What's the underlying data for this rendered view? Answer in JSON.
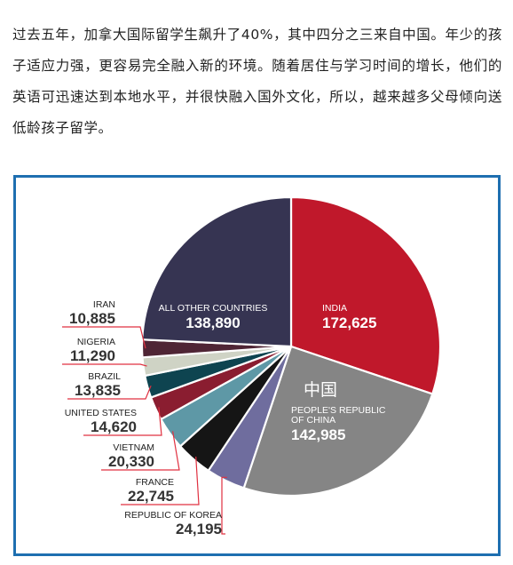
{
  "article": {
    "paragraph": "过去五年，加拿大国际留学生飙升了40%，其中四分之三来自中国。年少的孩子适应力强，更容易完全融入新的环境。随着居住与学习时间的增长，他们的英语可迅速达到本地水平，并很快融入国外文化，所以，越来越多父母倾向送低龄孩子留学。"
  },
  "chart_data": {
    "type": "pie",
    "title": "",
    "slices": [
      {
        "label": "INDIA",
        "value": 172625,
        "value_label": "172,625",
        "color": "#c0182b"
      },
      {
        "label": "PEOPLE'S REPUBLIC OF CHINA",
        "value": 142985,
        "value_label": "142,985",
        "note": "中国",
        "color": "#858585"
      },
      {
        "label": "REPUBLIC OF KOREA",
        "value": 24195,
        "value_label": "24,195",
        "color": "#6f6d9e"
      },
      {
        "label": "FRANCE",
        "value": 22745,
        "value_label": "22,745",
        "color": "#151515"
      },
      {
        "label": "VIETNAM",
        "value": 20330,
        "value_label": "20,330",
        "color": "#5e98a6"
      },
      {
        "label": "UNITED STATES",
        "value": 14620,
        "value_label": "14,620",
        "color": "#8a1d30"
      },
      {
        "label": "BRAZIL",
        "value": 13835,
        "value_label": "13,835",
        "color": "#0e4450"
      },
      {
        "label": "NIGERIA",
        "value": 11290,
        "value_label": "11,290",
        "color": "#cfd3c5"
      },
      {
        "label": "IRAN",
        "value": 10885,
        "value_label": "10,885",
        "color": "#4f2535"
      },
      {
        "label": "ALL OTHER COUNTRIES",
        "value": 138890,
        "value_label": "138,890",
        "color": "#363452"
      }
    ],
    "leader_line_color": "#e03040",
    "frame_color": "#1e6fb0"
  }
}
